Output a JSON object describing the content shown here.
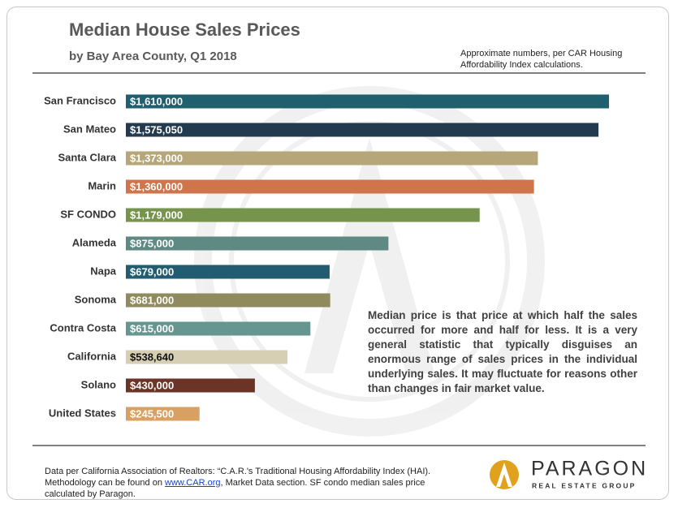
{
  "chart_data": {
    "type": "bar",
    "orientation": "horizontal",
    "title": "Median House Sales Prices",
    "subtitle": "by Bay Area County, Q1 2018",
    "note": "Approximate numbers, per CAR Housing Affordability Index calculations.",
    "annotation": "Median price is that price at which half the sales occurred for more and half for less. It is a very general statistic that typically disguises an enormous range of sales prices in the individual underlying sales. It may fluctuate for reasons other than changes in fair market value.",
    "categories": [
      "San Francisco",
      "San Mateo",
      "Santa Clara",
      "Marin",
      "SF CONDO",
      "Alameda",
      "Napa",
      "Sonoma",
      "Contra Costa",
      "California",
      "Solano",
      "United States"
    ],
    "values": [
      1610000,
      1575050,
      1373000,
      1360000,
      1179000,
      875000,
      679000,
      681000,
      615000,
      538640,
      430000,
      245500
    ],
    "value_labels": [
      "$1,610,000",
      "$1,575,050",
      "$1,373,000",
      "$1,360,000",
      "$1,179,000",
      "$875,000",
      "$679,000",
      "$681,000",
      "$615,000",
      "$538,640",
      "$430,000",
      "$245,500"
    ],
    "colors": [
      "#1f5f6e",
      "#243a4f",
      "#b5a77a",
      "#cf744b",
      "#76944c",
      "#5f8a84",
      "#215c70",
      "#8f8b5e",
      "#669690",
      "#d7cfb4",
      "#6b3426",
      "#d9a063"
    ]
  },
  "footer": {
    "parts": [
      "Data per California Association of Realtors: “C.A.R.'s Traditional Housing Affordability Index (HAI). Methodology can be found on ",
      "www.CAR.org",
      ",  Market Data section. SF condo median sales price calculated by Paragon."
    ]
  },
  "logo": {
    "name": "PARAGON",
    "tagline": "REAL ESTATE GROUP"
  }
}
